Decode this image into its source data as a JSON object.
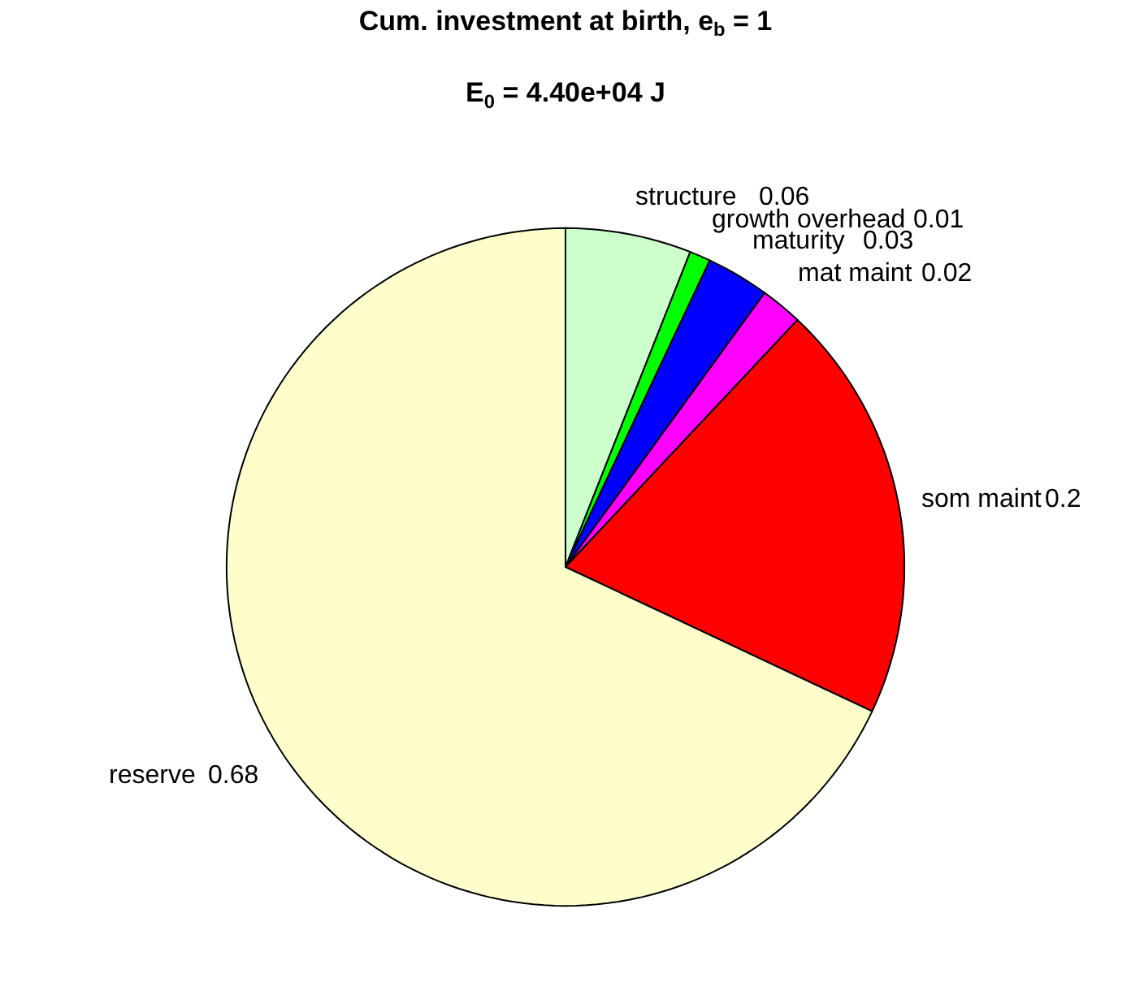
{
  "chart_data": {
    "type": "pie",
    "title": "Cum. investment at birth, e$_{b}$ = 1",
    "subtitle": "E$_{0}$ = 4.40e+04 J",
    "categories": [
      "structure",
      "growth overhead",
      "maturity",
      "mat maint",
      "som maint",
      "reserve"
    ],
    "values": [
      0.06,
      0.01,
      0.03,
      0.02,
      0.2,
      0.68
    ],
    "data_labels": true,
    "colors": [
      "#ccffcc",
      "#00ff00",
      "#0000ff",
      "#ff00ff",
      "#ff0000",
      "#ffffcc"
    ],
    "legend": false
  }
}
